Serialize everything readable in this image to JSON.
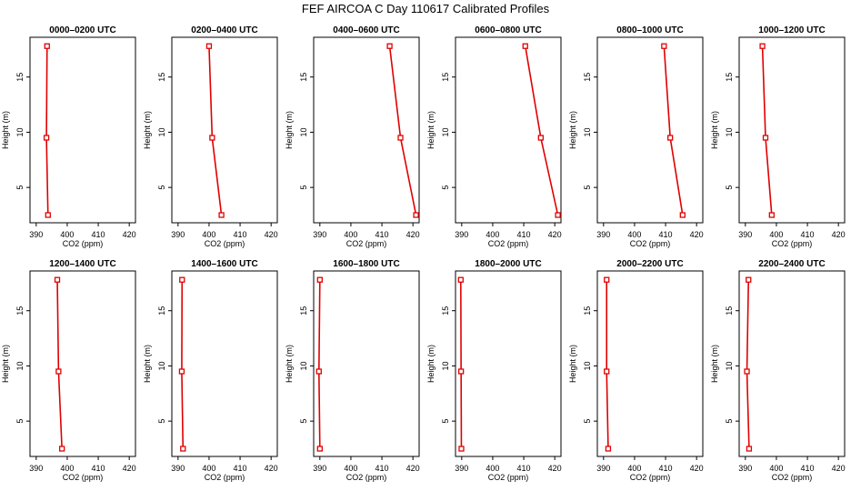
{
  "figure": {
    "title": "FEF AIRCOA C  Day 110617  Calibrated Profiles"
  },
  "colors": {
    "line": "#e00000",
    "marker": "#e00000",
    "frame": "#000000",
    "background": "#ffffff"
  },
  "chart_data": [
    {
      "type": "line",
      "title": "0000–0200 UTC",
      "xlabel": "CO2 (ppm)",
      "ylabel": "Height (m)",
      "xlim": [
        388,
        422
      ],
      "ylim": [
        1.8,
        18.6
      ],
      "xticks": [
        390,
        400,
        410,
        420
      ],
      "yticks": [
        5,
        10,
        15
      ],
      "x": [
        393.5,
        393.3,
        393.8
      ],
      "y": [
        17.8,
        9.5,
        2.5
      ]
    },
    {
      "type": "line",
      "title": "0200–0400 UTC",
      "xlabel": "CO2 (ppm)",
      "ylabel": "Height (m)",
      "xlim": [
        388,
        422
      ],
      "ylim": [
        1.8,
        18.6
      ],
      "xticks": [
        390,
        400,
        410,
        420
      ],
      "yticks": [
        5,
        10,
        15
      ],
      "x": [
        400.0,
        401.0,
        404.0
      ],
      "y": [
        17.8,
        9.5,
        2.5
      ]
    },
    {
      "type": "line",
      "title": "0400–0600 UTC",
      "xlabel": "CO2 (ppm)",
      "ylabel": "Height (m)",
      "xlim": [
        388,
        422
      ],
      "ylim": [
        1.8,
        18.6
      ],
      "xticks": [
        390,
        400,
        410,
        420
      ],
      "yticks": [
        5,
        10,
        15
      ],
      "x": [
        412.5,
        416.0,
        421.0
      ],
      "y": [
        17.8,
        9.5,
        2.5
      ]
    },
    {
      "type": "line",
      "title": "0600–0800 UTC",
      "xlabel": "CO2 (ppm)",
      "ylabel": "Height (m)",
      "xlim": [
        388,
        422
      ],
      "ylim": [
        1.8,
        18.6
      ],
      "xticks": [
        390,
        400,
        410,
        420
      ],
      "yticks": [
        5,
        10,
        15
      ],
      "x": [
        410.5,
        415.5,
        421.0
      ],
      "y": [
        17.8,
        9.5,
        2.5
      ]
    },
    {
      "type": "line",
      "title": "0800–1000 UTC",
      "xlabel": "CO2 (ppm)",
      "ylabel": "Height (m)",
      "xlim": [
        388,
        422
      ],
      "ylim": [
        1.8,
        18.6
      ],
      "xticks": [
        390,
        400,
        410,
        420
      ],
      "yticks": [
        5,
        10,
        15
      ],
      "x": [
        409.5,
        411.5,
        415.5
      ],
      "y": [
        17.8,
        9.5,
        2.5
      ]
    },
    {
      "type": "line",
      "title": "1000–1200 UTC",
      "xlabel": "CO2 (ppm)",
      "ylabel": "Height (m)",
      "xlim": [
        388,
        422
      ],
      "ylim": [
        1.8,
        18.6
      ],
      "xticks": [
        390,
        400,
        410,
        420
      ],
      "yticks": [
        5,
        10,
        15
      ],
      "x": [
        395.5,
        396.5,
        398.5
      ],
      "y": [
        17.8,
        9.5,
        2.5
      ]
    },
    {
      "type": "line",
      "title": "1200–1400 UTC",
      "xlabel": "CO2 (ppm)",
      "ylabel": "Height (m)",
      "xlim": [
        388,
        422
      ],
      "ylim": [
        1.8,
        18.6
      ],
      "xticks": [
        390,
        400,
        410,
        420
      ],
      "yticks": [
        5,
        10,
        15
      ],
      "x": [
        396.8,
        397.2,
        398.3
      ],
      "y": [
        17.8,
        9.5,
        2.5
      ]
    },
    {
      "type": "line",
      "title": "1400–1600 UTC",
      "xlabel": "CO2 (ppm)",
      "ylabel": "Height (m)",
      "xlim": [
        388,
        422
      ],
      "ylim": [
        1.8,
        18.6
      ],
      "xticks": [
        390,
        400,
        410,
        420
      ],
      "yticks": [
        5,
        10,
        15
      ],
      "x": [
        391.3,
        391.2,
        391.6
      ],
      "y": [
        17.8,
        9.5,
        2.5
      ]
    },
    {
      "type": "line",
      "title": "1600–1800 UTC",
      "xlabel": "CO2 (ppm)",
      "ylabel": "Height (m)",
      "xlim": [
        388,
        422
      ],
      "ylim": [
        1.8,
        18.6
      ],
      "xticks": [
        390,
        400,
        410,
        420
      ],
      "yticks": [
        5,
        10,
        15
      ],
      "x": [
        390.0,
        389.7,
        390.0
      ],
      "y": [
        17.8,
        9.5,
        2.5
      ]
    },
    {
      "type": "line",
      "title": "1800–2000 UTC",
      "xlabel": "CO2 (ppm)",
      "ylabel": "Height (m)",
      "xlim": [
        388,
        422
      ],
      "ylim": [
        1.8,
        18.6
      ],
      "xticks": [
        390,
        400,
        410,
        420
      ],
      "yticks": [
        5,
        10,
        15
      ],
      "x": [
        389.7,
        389.8,
        389.9
      ],
      "y": [
        17.8,
        9.5,
        2.5
      ]
    },
    {
      "type": "line",
      "title": "2000–2200 UTC",
      "xlabel": "CO2 (ppm)",
      "ylabel": "Height (m)",
      "xlim": [
        388,
        422
      ],
      "ylim": [
        1.8,
        18.6
      ],
      "xticks": [
        390,
        400,
        410,
        420
      ],
      "yticks": [
        5,
        10,
        15
      ],
      "x": [
        391.0,
        391.0,
        391.5
      ],
      "y": [
        17.8,
        9.5,
        2.5
      ]
    },
    {
      "type": "line",
      "title": "2200–2400 UTC",
      "xlabel": "CO2 (ppm)",
      "ylabel": "Height (m)",
      "xlim": [
        388,
        422
      ],
      "ylim": [
        1.8,
        18.6
      ],
      "xticks": [
        390,
        400,
        410,
        420
      ],
      "yticks": [
        5,
        10,
        15
      ],
      "x": [
        391.0,
        390.5,
        391.2
      ],
      "y": [
        17.8,
        9.5,
        2.5
      ]
    }
  ]
}
